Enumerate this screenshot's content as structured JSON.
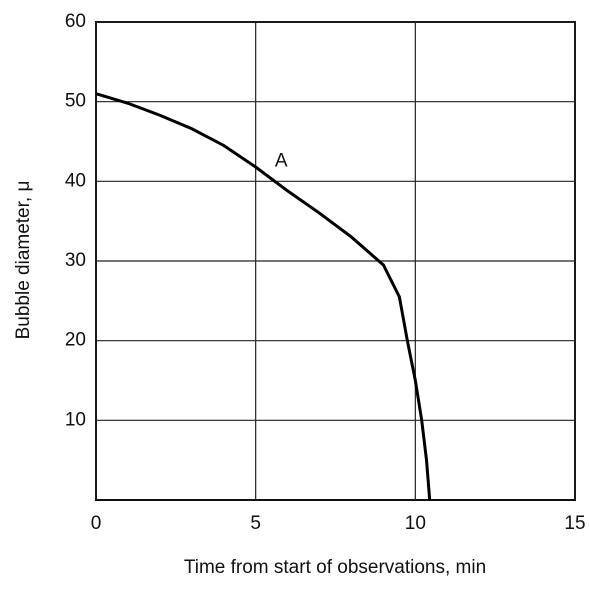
{
  "chart_data": {
    "type": "line",
    "x_label": "Time from start of observations, min",
    "y_label": "Bubble diameter, μ",
    "annotation": "A",
    "x": [
      0,
      1,
      2,
      3,
      4,
      5,
      6,
      7,
      8,
      9,
      9.5,
      9.75,
      10,
      10.2,
      10.35,
      10.45
    ],
    "series": [
      {
        "name": null,
        "color": "#000000",
        "values": [
          51,
          49.8,
          48.3,
          46.6,
          44.5,
          41.8,
          38.8,
          36,
          33,
          29.5,
          25.5,
          20,
          15,
          10,
          5,
          0
        ]
      }
    ],
    "xlim": [
      0,
      15
    ],
    "ylim": [
      0,
      60
    ],
    "xticks": [
      0,
      5,
      10,
      15
    ],
    "yticks": [
      10,
      20,
      30,
      40,
      50,
      60
    ],
    "grid": true
  }
}
